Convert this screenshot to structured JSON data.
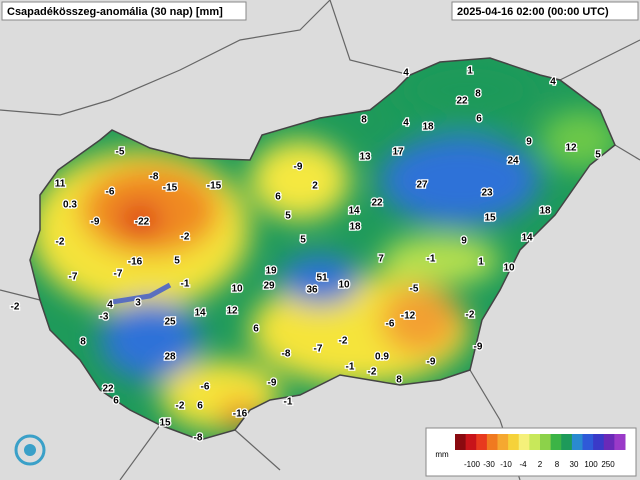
{
  "header": {
    "title": "Csapadékösszeg-anomália (30 nap) [mm]",
    "timestamp": "2025-04-16 02:00 (00:00 UTC)"
  },
  "stations": [
    -5,
    11,
    -6,
    -8,
    -15,
    -15,
    0.3,
    -9,
    -22,
    -2,
    -2,
    -16,
    5,
    -7,
    -7,
    -2,
    4,
    3,
    -1,
    -3,
    8,
    25,
    14,
    12,
    10,
    6,
    28,
    22,
    6,
    -6,
    -2,
    6,
    15,
    -8,
    -16,
    -1,
    -9,
    -8,
    -7,
    -2,
    -1,
    0.9,
    -2,
    8,
    -9,
    -9,
    -2,
    -6,
    -12,
    -5,
    -9,
    2,
    6,
    5,
    5,
    8,
    13,
    14,
    18,
    22,
    7,
    19,
    29,
    51,
    36,
    10,
    4,
    1,
    4,
    22,
    8,
    4,
    18,
    6,
    17,
    9,
    12,
    5,
    24,
    27,
    23,
    18,
    15,
    14,
    9,
    -1,
    1,
    10
  ],
  "legend": {
    "unit": "mm",
    "labels": [
      -100,
      -30,
      -10,
      -4,
      2,
      8,
      30,
      100,
      250
    ]
  }
}
